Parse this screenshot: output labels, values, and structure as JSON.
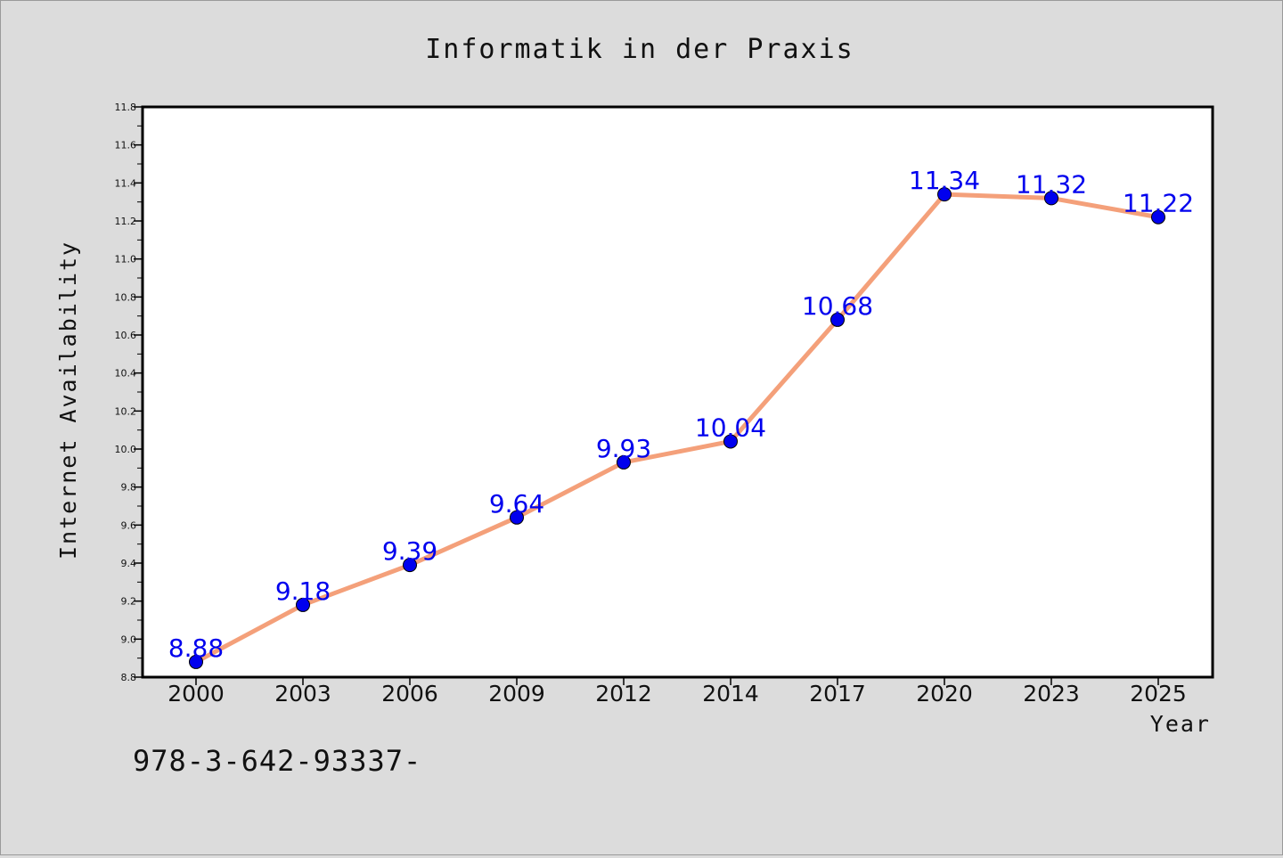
{
  "chart_data": {
    "type": "line",
    "title": "Informatik in der Praxis",
    "xlabel": "Year",
    "ylabel": "Internet Availability",
    "categories": [
      "2000",
      "2003",
      "2006",
      "2009",
      "2012",
      "2014",
      "2017",
      "2020",
      "2023",
      "2025"
    ],
    "series": [
      {
        "values": [
          8.88,
          9.18,
          9.39,
          9.64,
          9.93,
          10.04,
          10.68,
          11.34,
          11.32,
          11.22
        ],
        "labels": [
          "8.88",
          "9.18",
          "9.39",
          "9.64",
          "9.93",
          "10.04",
          "10.68",
          "11.34",
          "11.32",
          "11.22"
        ],
        "line_color": "#f4a07a",
        "marker_color": "#0000ee",
        "label_color": "#0000ee"
      }
    ],
    "ylim": [
      8.8,
      11.8
    ],
    "y_major_ticks": [
      "8.8",
      "9.0",
      "9.2",
      "9.4",
      "9.6",
      "9.8",
      "10.0",
      "10.2",
      "10.4",
      "10.6",
      "10.8",
      "11.0",
      "11.2",
      "11.4",
      "11.6",
      "11.8"
    ],
    "grid": false,
    "legend": "none",
    "annotation": "978-3-642-93337-",
    "colors": {
      "figure_background": "#dcdcdc",
      "plot_background": "#ffffff",
      "axes_frame": "#000000"
    }
  }
}
